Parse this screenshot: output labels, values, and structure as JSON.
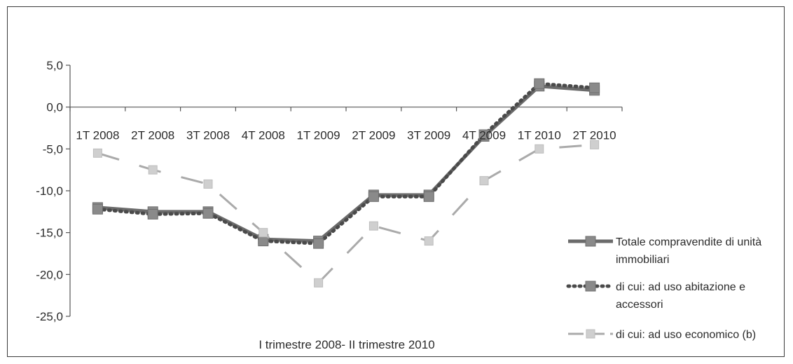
{
  "chart_data": {
    "type": "line",
    "title": "",
    "xlabel": "I trimestre 2008- II trimestre 2010",
    "ylabel": "",
    "ylim": [
      -25,
      5
    ],
    "yticks": [
      5,
      0,
      -5,
      -10,
      -15,
      -20,
      -25
    ],
    "ytick_labels": [
      "5,0",
      "0,0",
      "-5,0",
      "-10,0",
      "-15,0",
      "-20,0",
      "-25,0"
    ],
    "categories": [
      "1T 2008",
      "2T 2008",
      "3T 2008",
      "4T 2008",
      "1T 2009",
      "2T 2009",
      "3T 2009",
      "4T 2009",
      "1T 2010",
      "2T 2010"
    ],
    "legend_position": "right",
    "series": [
      {
        "name_lines": [
          "Totale compravendite  di unità",
          "immobiliari"
        ],
        "style": "solid",
        "color": "#6b6b6b",
        "values": [
          -12.0,
          -12.5,
          -12.5,
          -15.8,
          -16.0,
          -10.5,
          -10.5,
          -3.5,
          2.5,
          2.0
        ]
      },
      {
        "name_lines": [
          "di cui:  ad uso abitazione e",
          "accessori"
        ],
        "style": "dotted",
        "color": "#4a4a4a",
        "values": [
          -12.2,
          -12.8,
          -12.7,
          -16.0,
          -16.3,
          -10.7,
          -10.7,
          -3.3,
          2.8,
          2.3
        ]
      },
      {
        "name_lines": [
          "di cui:  ad uso economico  (b)"
        ],
        "style": "dashed",
        "color": "#aaaaaa",
        "values": [
          -5.5,
          -7.5,
          -9.2,
          -15.0,
          -21.0,
          -14.2,
          -16.0,
          -8.8,
          -5.0,
          -4.5
        ]
      }
    ]
  }
}
